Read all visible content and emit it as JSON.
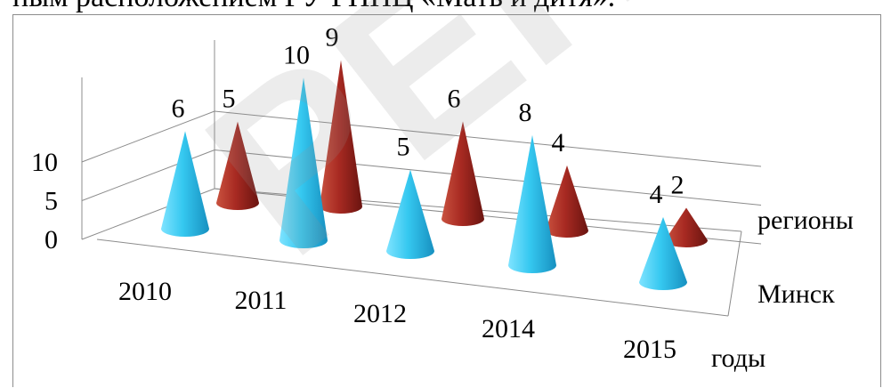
{
  "header_text": "ным расположением ГУ РНПЦ «Мать и дитя».",
  "watermark": "РЕПОЗИТОРИЙ",
  "colors": {
    "Минск": "#35c8f0",
    "регионы": "#a82a22",
    "grid": "#8c8c8c",
    "axis": "#8c8c8c"
  },
  "chart_data": {
    "type": "bar",
    "subtype": "3d-cone",
    "categories": [
      "2010",
      "2011",
      "2012",
      "2014",
      "2015"
    ],
    "series": [
      {
        "name": "Минск",
        "values": [
          6,
          10,
          5,
          8,
          4
        ]
      },
      {
        "name": "регионы",
        "values": [
          5,
          9,
          6,
          4,
          2
        ]
      }
    ],
    "ylim": [
      0,
      10
    ],
    "yticks": [
      "0",
      "5",
      "10"
    ],
    "xlabel": "годы",
    "grid": true,
    "legend": "none"
  }
}
